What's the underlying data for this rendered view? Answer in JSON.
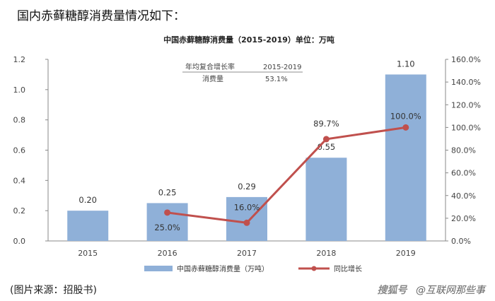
{
  "intro_text": "国内赤藓糖醇消费量情况如下：",
  "source_text": "(图片来源：招股书)",
  "watermark": {
    "logo": "搜狐号",
    "text": "@互联网那些事"
  },
  "annotation": {
    "col1_header": "年均复合增长率",
    "col2_header": "2015-2019",
    "row_label": "消费量",
    "row_value": "53.1%"
  },
  "chart_data": {
    "type": "bar",
    "title": "中国赤藓糖醇消费量（2015-2019）单位：万吨",
    "categories": [
      "2015",
      "2016",
      "2017",
      "2018",
      "2019"
    ],
    "series": [
      {
        "name": "中国赤藓糖醇消费量（万吨）",
        "type": "bar",
        "axis": "left",
        "values": [
          0.2,
          0.25,
          0.29,
          0.55,
          1.1
        ],
        "labels": [
          "0.20",
          "0.25",
          "0.29",
          "0.55",
          "1.10"
        ],
        "color": "#8fb0d8"
      },
      {
        "name": "同比增长",
        "type": "line",
        "axis": "right",
        "values": [
          null,
          25.0,
          16.0,
          89.7,
          100.0
        ],
        "labels": [
          "",
          "25.0%",
          "16.0%",
          "89.7%",
          "100.0%"
        ],
        "color": "#c0504d"
      }
    ],
    "ylim_left": [
      0,
      1.2
    ],
    "yticks_left": [
      "0.0",
      "0.2",
      "0.4",
      "0.6",
      "0.8",
      "1.0",
      "1.2"
    ],
    "ylim_right": [
      0,
      160
    ],
    "yticks_right": [
      "0.0%",
      "20.0%",
      "40.0%",
      "60.0%",
      "80.0%",
      "100.0%",
      "120.0%",
      "140.0%",
      "160.0%"
    ],
    "grid": false,
    "legend_position": "bottom"
  }
}
